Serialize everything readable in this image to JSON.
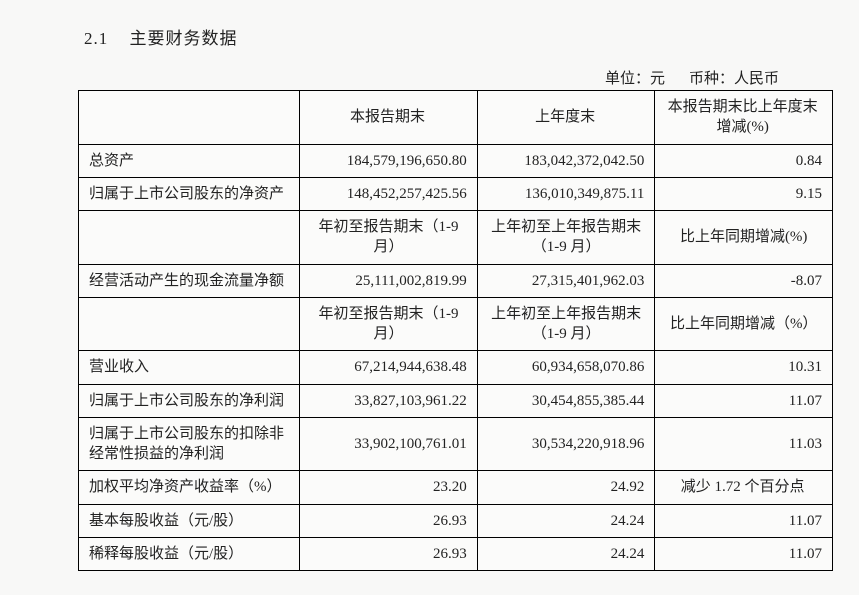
{
  "heading": {
    "number": "2.1",
    "title": "主要财务数据"
  },
  "unit_line": {
    "unit_label": "单位：",
    "unit_value": "元",
    "currency_label": "币种：",
    "currency_value": "人民币"
  },
  "table": {
    "header1": {
      "blank": "",
      "col_current": "本报告期末",
      "col_prior": "上年度末",
      "col_change": "本报告期末比上年度末增减(%)"
    },
    "rows1": [
      {
        "label": "总资产",
        "current": "184,579,196,650.80",
        "prior": "183,042,372,042.50",
        "change": "0.84"
      },
      {
        "label": "归属于上市公司股东的净资产",
        "current": "148,452,257,425.56",
        "prior": "136,010,349,875.11",
        "change": "9.15"
      }
    ],
    "header2": {
      "blank": "",
      "col_current": "年初至报告期末（1-9 月）",
      "col_prior": "上年初至上年报告期末（1-9 月）",
      "col_change": "比上年同期增减(%)"
    },
    "rows2": [
      {
        "label": "经营活动产生的现金流量净额",
        "current": "25,111,002,819.99",
        "prior": "27,315,401,962.03",
        "change": "-8.07"
      }
    ],
    "header3": {
      "blank": "",
      "col_current": "年初至报告期末（1-9 月）",
      "col_prior": "上年初至上年报告期末（1-9 月）",
      "col_change": "比上年同期增减（%）"
    },
    "rows3": [
      {
        "label": "营业收入",
        "current": "67,214,944,638.48",
        "prior": "60,934,658,070.86",
        "change": "10.31"
      },
      {
        "label": "归属于上市公司股东的净利润",
        "current": "33,827,103,961.22",
        "prior": "30,454,855,385.44",
        "change": "11.07"
      },
      {
        "label": "归属于上市公司股东的扣除非经常性损益的净利润",
        "current": "33,902,100,761.01",
        "prior": "30,534,220,918.96",
        "change": "11.03"
      },
      {
        "label": "加权平均净资产收益率（%）",
        "current": "23.20",
        "prior": "24.92",
        "change": "减少 1.72 个百分点"
      },
      {
        "label": "基本每股收益（元/股）",
        "current": "26.93",
        "prior": "24.24",
        "change": "11.07"
      },
      {
        "label": "稀释每股收益（元/股）",
        "current": "26.93",
        "prior": "24.24",
        "change": "11.07"
      }
    ]
  }
}
